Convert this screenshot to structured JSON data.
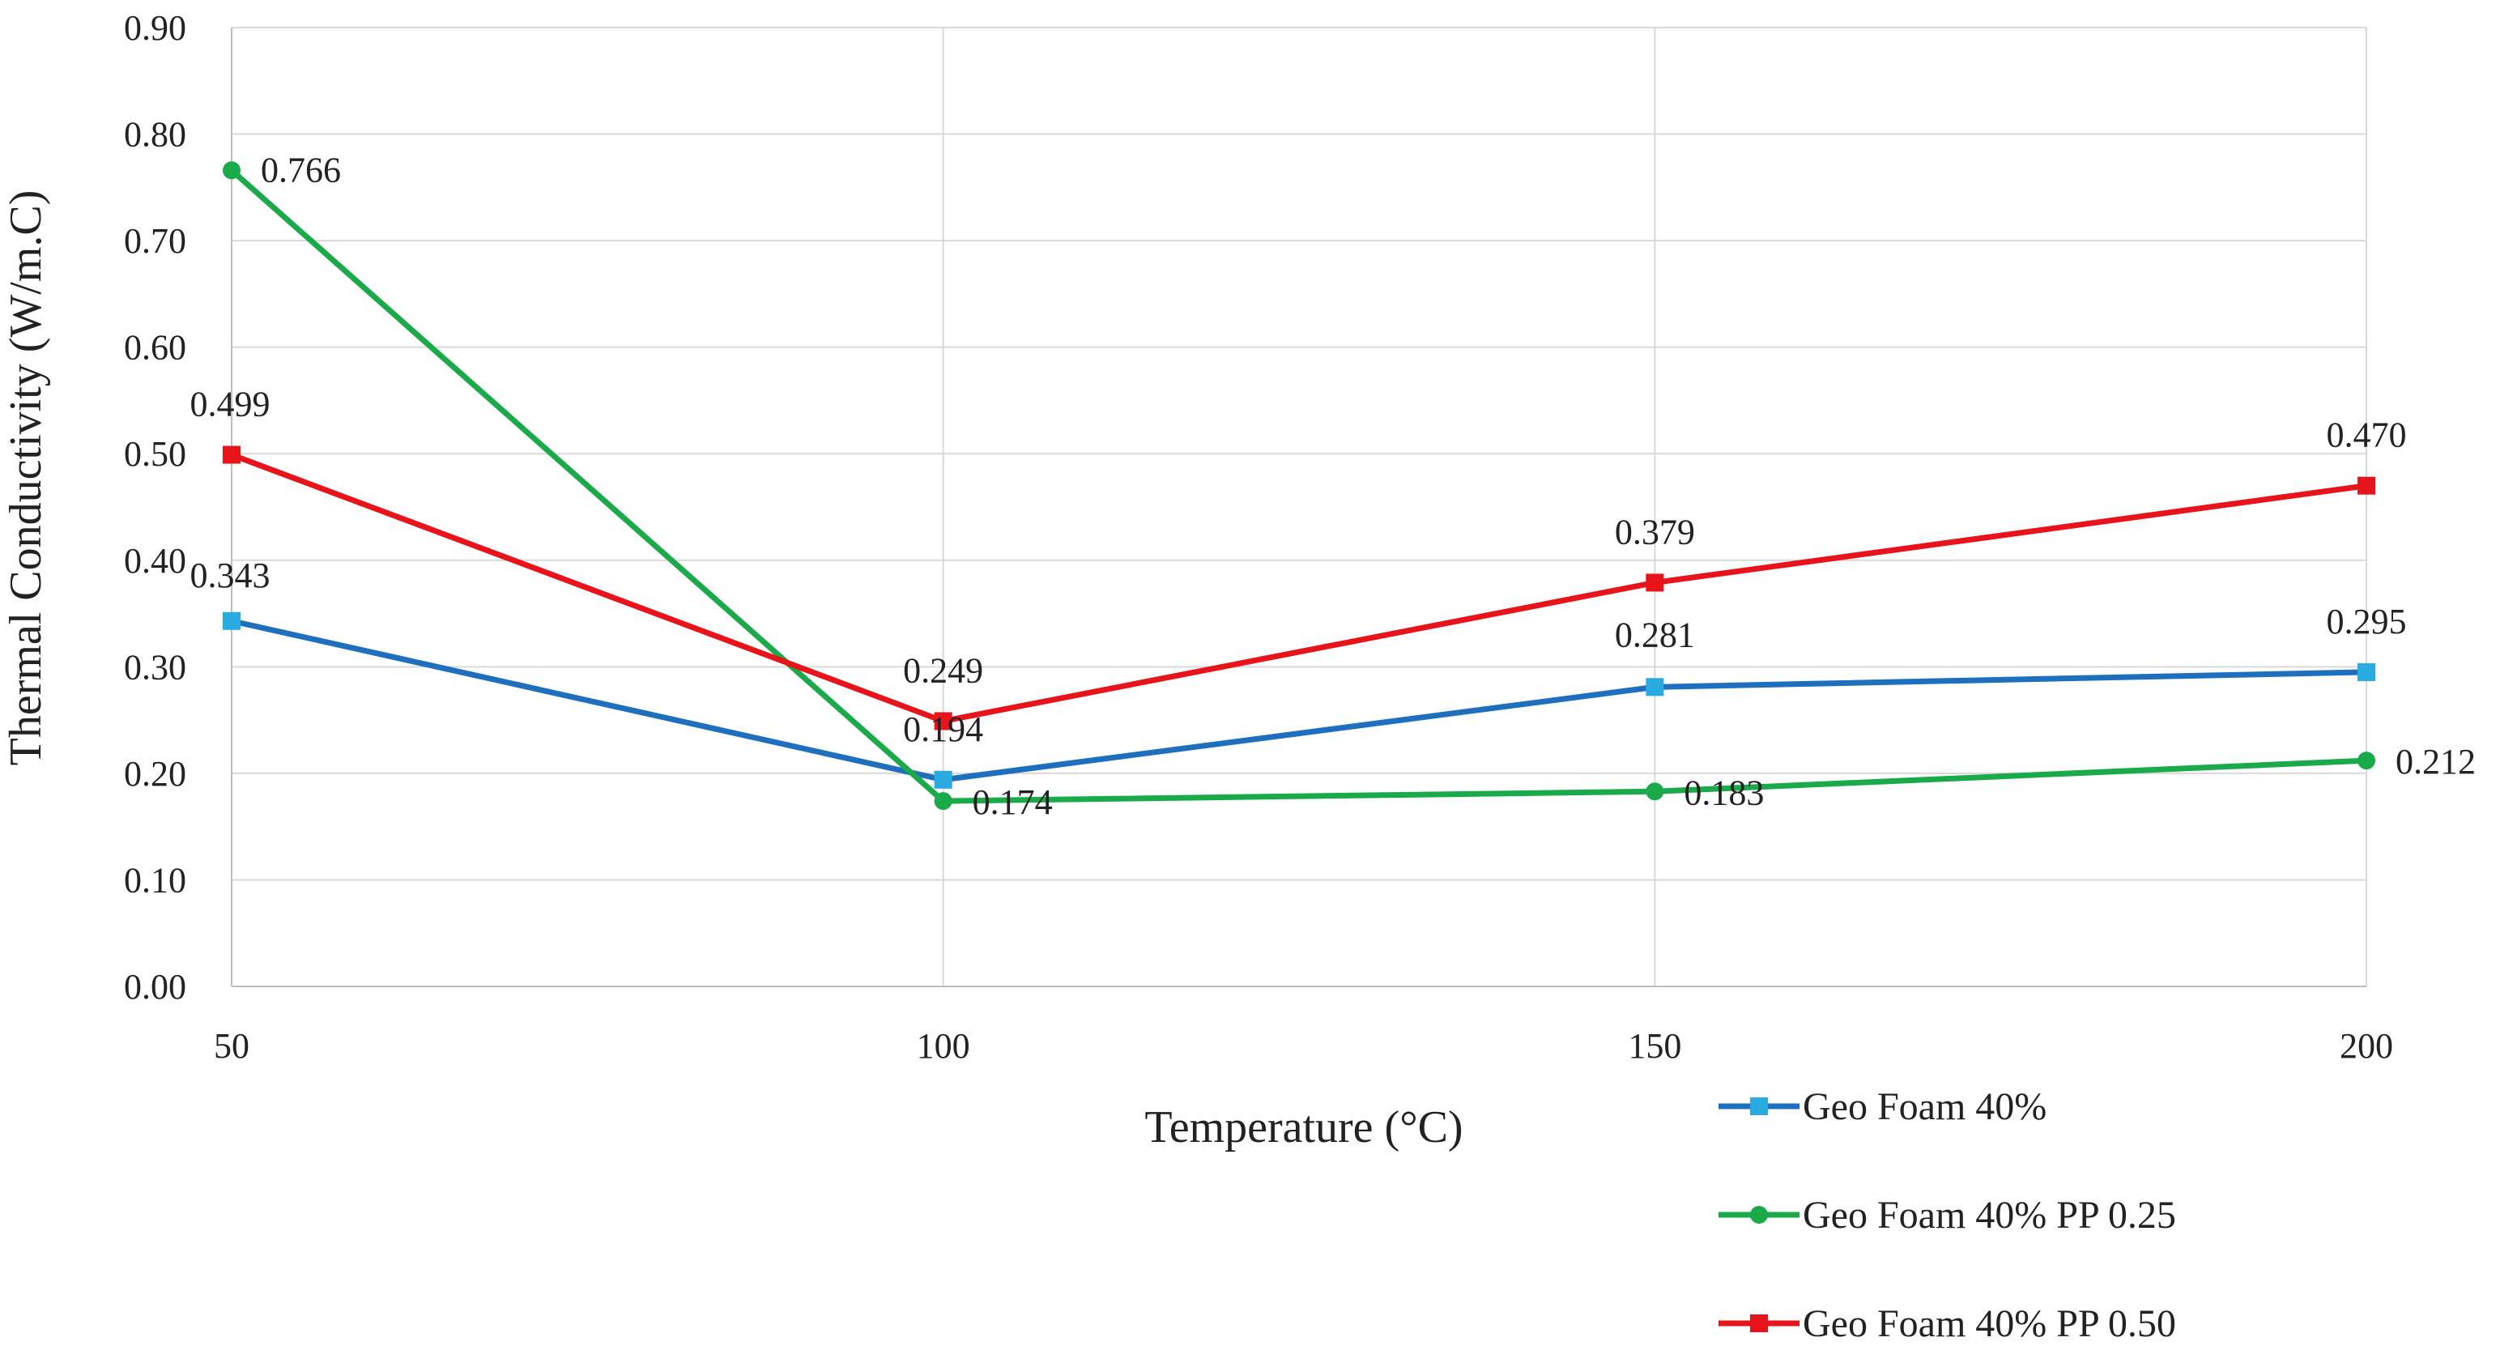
{
  "chart_data": {
    "type": "line",
    "title": "",
    "xlabel": "Temperature (°C)",
    "ylabel": "Thermal Conductivity (W/m.C)",
    "x": [
      50,
      100,
      150,
      200
    ],
    "x_tick_labels": [
      "50",
      "100",
      "150",
      "200"
    ],
    "ylim": [
      0,
      0.9
    ],
    "y_ticks": [
      0,
      0.1,
      0.2,
      0.3,
      0.4,
      0.5,
      0.6,
      0.7,
      0.8,
      0.9
    ],
    "y_tick_labels": [
      "0.00",
      "0.10",
      "0.20",
      "0.30",
      "0.40",
      "0.50",
      "0.60",
      "0.70",
      "0.80",
      "0.90"
    ],
    "grid": true,
    "legend_position": "bottom-right",
    "series": [
      {
        "name": "Geo Foam 40%",
        "color": "#1f6fbf",
        "marker_color": "#29abe2",
        "marker": "square",
        "values": [
          0.343,
          0.194,
          0.281,
          0.295
        ],
        "labels": [
          "0.343",
          "0.194",
          "0.281",
          "0.295"
        ]
      },
      {
        "name": "Geo Foam 40% PP 0.25",
        "color": "#1aaa4a",
        "marker_color": "#1aaa4a",
        "marker": "circle",
        "values": [
          0.766,
          0.174,
          0.183,
          0.212
        ],
        "labels": [
          "0.766",
          "0.174",
          "0.183",
          "0.212"
        ]
      },
      {
        "name": "Geo Foam 40% PP 0.50",
        "color": "#e8141b",
        "marker_color": "#e8141b",
        "marker": "square",
        "values": [
          0.499,
          0.249,
          0.379,
          0.47
        ],
        "labels": [
          "0.499",
          "0.249",
          "0.379",
          "0.470"
        ]
      }
    ]
  }
}
